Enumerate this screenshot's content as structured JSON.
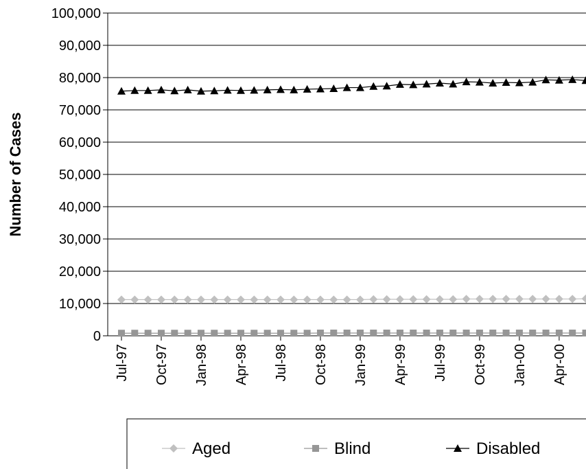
{
  "chart_data": {
    "type": "line",
    "y_label": "Number of Cases",
    "categories": [
      "Jul-97",
      null,
      null,
      "Oct-97",
      null,
      null,
      "Jan-98",
      null,
      null,
      "Apr-98",
      null,
      null,
      "Jul-98",
      null,
      null,
      "Oct-98",
      null,
      null,
      "Jan-99",
      null,
      null,
      "Apr-99",
      null,
      null,
      "Jul-99",
      null,
      null,
      "Oct-99",
      null,
      null,
      "Jan-00",
      null,
      null,
      "Apr-00",
      null,
      null
    ],
    "ylim": [
      0,
      100000
    ],
    "yticks": [
      0,
      {
        "value": 10000,
        "label": "10,000"
      },
      {
        "value": 20000,
        "label": "20,000"
      },
      {
        "value": 30000,
        "label": "30,000"
      },
      {
        "value": 40000,
        "label": "40,000"
      },
      {
        "value": 50000,
        "label": "50,000"
      },
      {
        "value": 60000,
        "label": "60,000"
      },
      {
        "value": 70000,
        "label": "70,000"
      },
      {
        "value": 80000,
        "label": "80,000"
      },
      {
        "value": 90000,
        "label": "90,000"
      },
      {
        "value": 100000,
        "label": "100,000"
      }
    ],
    "grid": true,
    "legend": "bottom",
    "series": [
      {
        "name": "Aged",
        "color": "#c0c0c0",
        "marker": "diamond",
        "values": [
          11200,
          11200,
          11200,
          11200,
          11200,
          11200,
          11200,
          11200,
          11200,
          11200,
          11200,
          11200,
          11200,
          11200,
          11200,
          11200,
          11200,
          11200,
          11200,
          11300,
          11300,
          11300,
          11300,
          11300,
          11300,
          11300,
          11400,
          11400,
          11400,
          11400,
          11400,
          11400,
          11400,
          11400,
          11400,
          11500
        ]
      },
      {
        "name": "Blind",
        "color": "#969696",
        "marker": "square",
        "values": [
          800,
          800,
          800,
          800,
          800,
          800,
          800,
          800,
          800,
          800,
          800,
          800,
          800,
          800,
          800,
          850,
          850,
          850,
          850,
          850,
          850,
          850,
          850,
          850,
          850,
          850,
          850,
          850,
          850,
          850,
          850,
          850,
          850,
          850,
          850,
          850
        ]
      },
      {
        "name": "Disabled",
        "color": "#000000",
        "marker": "triangle",
        "values": [
          75800,
          76000,
          76000,
          76200,
          75900,
          76200,
          75800,
          75900,
          76100,
          76000,
          76100,
          76200,
          76300,
          76200,
          76400,
          76500,
          76600,
          76900,
          76900,
          77300,
          77400,
          77900,
          77800,
          78000,
          78300,
          78000,
          78700,
          78600,
          78300,
          78500,
          78400,
          78600,
          79300,
          79200,
          79400,
          79100
        ]
      }
    ]
  }
}
